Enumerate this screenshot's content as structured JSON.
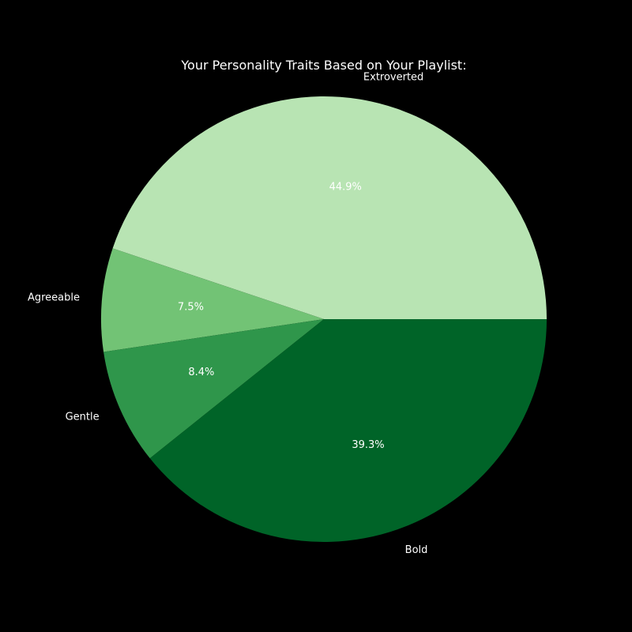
{
  "chart_data": {
    "type": "pie",
    "title": "Your Personality Traits Based on Your Playlist:",
    "start_angle_deg": 0,
    "direction": "counterclockwise",
    "slices": [
      {
        "label": "Extroverted",
        "value": 44.9,
        "pct_label": "44.9%",
        "color": "#b8e4b3"
      },
      {
        "label": "Agreeable",
        "value": 7.5,
        "pct_label": "7.5%",
        "color": "#72c375"
      },
      {
        "label": "Gentle",
        "value": 8.4,
        "pct_label": "8.4%",
        "color": "#2f964b"
      },
      {
        "label": "Bold",
        "value": 39.3,
        "pct_label": "39.3%",
        "color": "#006428"
      }
    ],
    "background": "#000000",
    "text_color": "#ffffff"
  }
}
